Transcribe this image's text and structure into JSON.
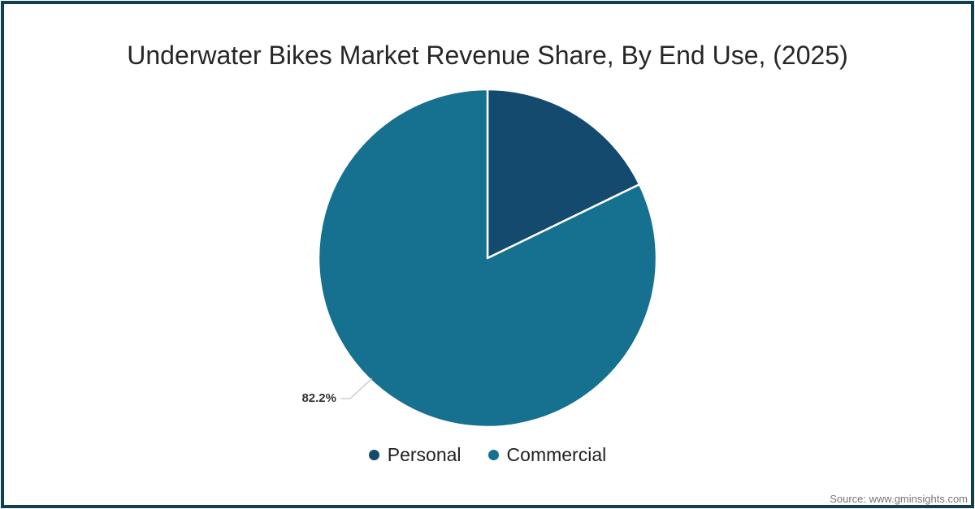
{
  "title": "Underwater Bikes Market Revenue Share, By End Use, (2025)",
  "source_note": "Source: www.gminsights.com",
  "annotation": {
    "text": "82.2%"
  },
  "frame": {
    "border_color": "#123f4e"
  },
  "legend": {
    "items": [
      {
        "label": "Personal",
        "color": "#144a6d"
      },
      {
        "label": "Commercial",
        "color": "#16708f"
      }
    ]
  },
  "chart_data": {
    "type": "pie",
    "title": "Underwater Bikes Market Revenue Share, By End Use, (2025)",
    "categories": [
      "Personal",
      "Commercial"
    ],
    "values": [
      17.8,
      82.2
    ],
    "unit": "%",
    "colors": [
      "#144a6d",
      "#16708f"
    ],
    "slice_border_color": "#ffffff",
    "labeled_slices": [
      {
        "category": "Commercial",
        "label": "82.2%"
      }
    ],
    "start_angle": 0,
    "direction": "clockwise",
    "legend_position": "bottom",
    "source": "Source: www.gminsights.com"
  }
}
